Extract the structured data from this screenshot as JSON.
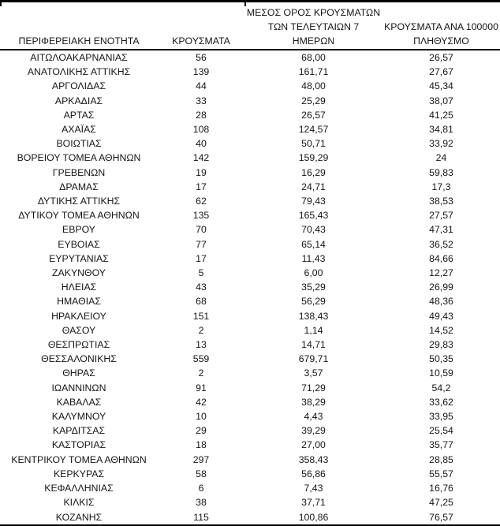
{
  "table": {
    "columns": [
      {
        "id": "region",
        "label": "ΠΕΡΙΦΕΡΕΙΑΚΗ ΕΝΟΤΗΤΑ"
      },
      {
        "id": "cases",
        "label": "ΚΡΟΥΣΜΑΤΑ"
      },
      {
        "id": "avg7",
        "label": "ΜΕΣΟΣ ΟΡΟΣ ΚΡΟΥΣΜΑΤΩΝ\nΤΩΝ ΤΕΛΕΥΤΑΙΩΝ 7\nΗΜΕΡΩΝ"
      },
      {
        "id": "per100k",
        "label": "ΚΡΟΥΣΜΑΤΑ ΑΝΑ 100000\nΠΛΗΘΥΣΜΟ"
      }
    ],
    "rows": [
      {
        "region": "ΑΙΤΩΛΟΑΚΑΡΝΑΝΙΑΣ",
        "cases": "56",
        "avg7": "68,00",
        "per100k": "26,57"
      },
      {
        "region": "ΑΝΑΤΟΛΙΚΗΣ ΑΤΤΙΚΗΣ",
        "cases": "139",
        "avg7": "161,71",
        "per100k": "27,67"
      },
      {
        "region": "ΑΡΓΟΛΙΔΑΣ",
        "cases": "44",
        "avg7": "48,00",
        "per100k": "45,34"
      },
      {
        "region": "ΑΡΚΑΔΙΑΣ",
        "cases": "33",
        "avg7": "25,29",
        "per100k": "38,07"
      },
      {
        "region": "ΑΡΤΑΣ",
        "cases": "28",
        "avg7": "26,57",
        "per100k": "41,25"
      },
      {
        "region": "ΑΧΑΪΑΣ",
        "cases": "108",
        "avg7": "124,57",
        "per100k": "34,81"
      },
      {
        "region": "ΒΟΙΩΤΙΑΣ",
        "cases": "40",
        "avg7": "50,71",
        "per100k": "33,92"
      },
      {
        "region": "ΒΟΡΕΙΟΥ ΤΟΜΕΑ ΑΘΗΝΩΝ",
        "cases": "142",
        "avg7": "159,29",
        "per100k": "24"
      },
      {
        "region": "ΓΡΕΒΕΝΩΝ",
        "cases": "19",
        "avg7": "16,29",
        "per100k": "59,83"
      },
      {
        "region": "ΔΡΑΜΑΣ",
        "cases": "17",
        "avg7": "24,71",
        "per100k": "17,3"
      },
      {
        "region": "ΔΥΤΙΚΗΣ ΑΤΤΙΚΗΣ",
        "cases": "62",
        "avg7": "79,43",
        "per100k": "38,53"
      },
      {
        "region": "ΔΥΤΙΚΟΥ ΤΟΜΕΑ ΑΘΗΝΩΝ",
        "cases": "135",
        "avg7": "165,43",
        "per100k": "27,57"
      },
      {
        "region": "ΕΒΡΟΥ",
        "cases": "70",
        "avg7": "70,43",
        "per100k": "47,31"
      },
      {
        "region": "ΕΥΒΟΙΑΣ",
        "cases": "77",
        "avg7": "65,14",
        "per100k": "36,52"
      },
      {
        "region": "ΕΥΡΥΤΑΝΙΑΣ",
        "cases": "17",
        "avg7": "11,43",
        "per100k": "84,66"
      },
      {
        "region": "ΖΑΚΥΝΘΟΥ",
        "cases": "5",
        "avg7": "6,00",
        "per100k": "12,27"
      },
      {
        "region": "ΗΛΕΙΑΣ",
        "cases": "43",
        "avg7": "35,29",
        "per100k": "26,99"
      },
      {
        "region": "ΗΜΑΘΙΑΣ",
        "cases": "68",
        "avg7": "56,29",
        "per100k": "48,36"
      },
      {
        "region": "ΗΡΑΚΛΕΙΟΥ",
        "cases": "151",
        "avg7": "138,43",
        "per100k": "49,43"
      },
      {
        "region": "ΘΑΣΟΥ",
        "cases": "2",
        "avg7": "1,14",
        "per100k": "14,52"
      },
      {
        "region": "ΘΕΣΠΡΩΤΙΑΣ",
        "cases": "13",
        "avg7": "14,71",
        "per100k": "29,83"
      },
      {
        "region": "ΘΕΣΣΑΛΟΝΙΚΗΣ",
        "cases": "559",
        "avg7": "679,71",
        "per100k": "50,35"
      },
      {
        "region": "ΘΗΡΑΣ",
        "cases": "2",
        "avg7": "3,57",
        "per100k": "10,59"
      },
      {
        "region": "ΙΩΑΝΝΙΝΩΝ",
        "cases": "91",
        "avg7": "71,29",
        "per100k": "54,2"
      },
      {
        "region": "ΚΑΒΑΛΑΣ",
        "cases": "42",
        "avg7": "38,29",
        "per100k": "33,62"
      },
      {
        "region": "ΚΑΛΥΜΝΟΥ",
        "cases": "10",
        "avg7": "4,43",
        "per100k": "33,95"
      },
      {
        "region": "ΚΑΡΔΙΤΣΑΣ",
        "cases": "29",
        "avg7": "39,29",
        "per100k": "25,54"
      },
      {
        "region": "ΚΑΣΤΟΡΙΑΣ",
        "cases": "18",
        "avg7": "27,00",
        "per100k": "35,77"
      },
      {
        "region": "ΚΕΝΤΡΙΚΟΥ ΤΟΜΕΑ ΑΘΗΝΩΝ",
        "cases": "297",
        "avg7": "358,43",
        "per100k": "28,85"
      },
      {
        "region": "ΚΕΡΚΥΡΑΣ",
        "cases": "58",
        "avg7": "56,86",
        "per100k": "55,57"
      },
      {
        "region": "ΚΕΦΑΛΛΗΝΙΑΣ",
        "cases": "6",
        "avg7": "7,43",
        "per100k": "16,76"
      },
      {
        "region": "ΚΙΛΚΙΣ",
        "cases": "38",
        "avg7": "37,71",
        "per100k": "47,25"
      },
      {
        "region": "ΚΟΖΑΝΗΣ",
        "cases": "115",
        "avg7": "100,86",
        "per100k": "76,57"
      }
    ]
  },
  "colors": {
    "text": "#161616",
    "border": "#000000",
    "background": "#ffffff"
  }
}
